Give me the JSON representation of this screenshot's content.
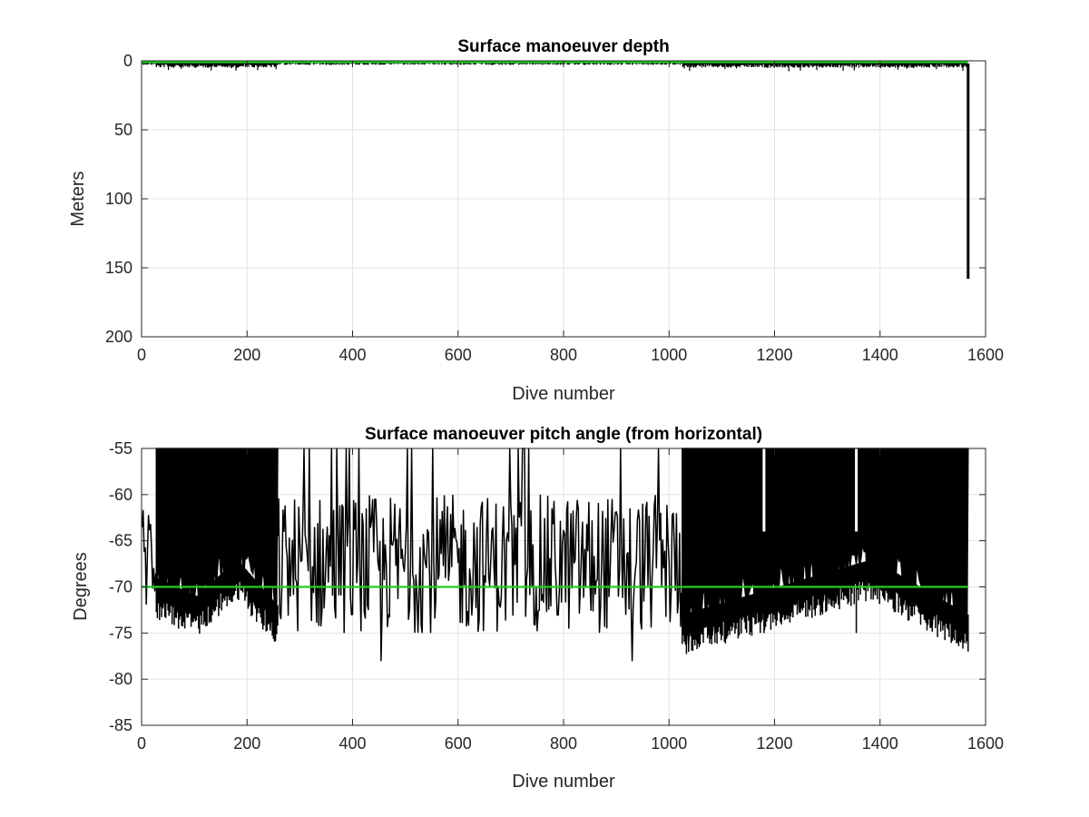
{
  "chart_data": [
    {
      "type": "line",
      "title": "Surface manoeuver depth",
      "xlabel": "Dive number",
      "ylabel": "Meters",
      "xlim": [
        0,
        1600
      ],
      "ylim": [
        0,
        200
      ],
      "y_reversed": true,
      "grid": true,
      "xticks": [
        "0",
        "200",
        "400",
        "600",
        "800",
        "1000",
        "1200",
        "1400",
        "1600"
      ],
      "yticks": [
        "0",
        "50",
        "100",
        "150",
        "200"
      ],
      "series": [
        {
          "color": "#000000",
          "style": "dense vertical bars per dive",
          "segments": [
            {
              "x_from": 1,
              "x_to": 28,
              "typical_min": 1,
              "typical_max": 3
            },
            {
              "x_from": 28,
              "x_to": 258,
              "typical_min": 2,
              "typical_max": 5,
              "max": 8
            },
            {
              "x_from": 258,
              "x_to": 1025,
              "typical_min": 1,
              "typical_max": 3
            },
            {
              "x_from": 1025,
              "x_to": 1565,
              "typical_min": 2,
              "typical_max": 5,
              "max": 8
            }
          ],
          "spike": {
            "x": 1567,
            "y": 158
          }
        },
        {
          "color": "#22cc22",
          "style": "reference line",
          "x": [
            0,
            1567
          ],
          "y": [
            1,
            1
          ]
        }
      ]
    },
    {
      "type": "line",
      "title": "Surface manoeuver pitch angle (from horizontal)",
      "xlabel": "Dive number",
      "ylabel": "Degrees",
      "xlim": [
        0,
        1600
      ],
      "ylim": [
        -85,
        -55
      ],
      "grid": true,
      "xticks": [
        "0",
        "200",
        "400",
        "600",
        "800",
        "1000",
        "1200",
        "1400",
        "1600"
      ],
      "yticks": [
        "-55",
        "-60",
        "-65",
        "-70",
        "-75",
        "-80",
        "-85"
      ],
      "series": [
        {
          "color": "#000000",
          "style": "noisy line",
          "segments": [
            {
              "x_from": 1,
              "x_to": 28,
              "range": [
                -73,
                -60
              ]
            },
            {
              "x_from": 28,
              "x_to": 258,
              "fill_to_top": true,
              "lower_envelope": [
                -71,
                -73,
                -69,
                -74
              ]
            },
            {
              "x_from": 258,
              "x_to": 1025,
              "range": [
                -75,
                -60
              ],
              "spikes_to": -55,
              "min": -78
            },
            {
              "x_from": 1025,
              "x_to": 1567,
              "fill_to_top": true,
              "lower_envelope": [
                -75,
                -72,
                -69,
                -75
              ]
            }
          ],
          "gaps_at": [
            1180,
            1355
          ]
        },
        {
          "color": "#22cc22",
          "style": "reference line",
          "x": [
            0,
            1567
          ],
          "y": [
            -70,
            -70
          ]
        }
      ]
    }
  ]
}
